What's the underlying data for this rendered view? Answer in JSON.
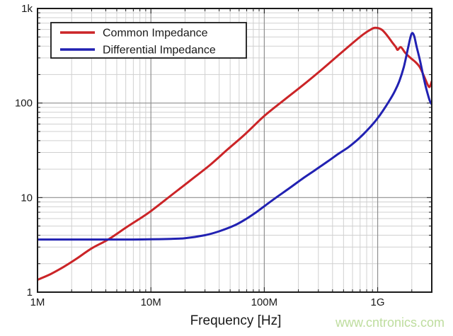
{
  "watermark": {
    "text": "www.cntronics.com",
    "color": "#bedd9e"
  },
  "colors": {
    "background": "#ffffff",
    "axis": "#1a1a1a",
    "grid_minor": "#d0d0d0",
    "grid_major": "#8f8f8f",
    "text": "#1a1a1a",
    "common_series": "#cb2427",
    "differential_series": "#2121b2",
    "legend_border": "#1a1a1a",
    "legend_background": "#ffffff"
  },
  "chart_data": {
    "type": "line",
    "title": "",
    "xlabel": "Frequency [Hz]",
    "ylabel": "",
    "x_scale": "log",
    "y_scale": "log",
    "xlim": [
      1000000.0,
      3000000000.0
    ],
    "ylim": [
      1,
      1000
    ],
    "grid": {
      "major": true,
      "minor": true
    },
    "legend_position": "top-left",
    "x_ticks": [
      {
        "value": 1000000.0,
        "label": "1M"
      },
      {
        "value": 10000000.0,
        "label": "10M"
      },
      {
        "value": 100000000.0,
        "label": "100M"
      },
      {
        "value": 1000000000.0,
        "label": "1G"
      }
    ],
    "y_ticks": [
      {
        "value": 1,
        "label": "1"
      },
      {
        "value": 10,
        "label": "10"
      },
      {
        "value": 100,
        "label": "100"
      },
      {
        "value": 1000,
        "label": "1k"
      }
    ],
    "series": [
      {
        "name": "Common Impedance",
        "color": "#cb2427",
        "points": [
          [
            1000000.0,
            1.35
          ],
          [
            1300000.0,
            1.55
          ],
          [
            1700000.0,
            1.85
          ],
          [
            2200000.0,
            2.25
          ],
          [
            3000000.0,
            2.9
          ],
          [
            4200000.0,
            3.6
          ],
          [
            6000000.0,
            4.8
          ],
          [
            8000000.0,
            6.0
          ],
          [
            10000000.0,
            7.2
          ],
          [
            15000000.0,
            10.5
          ],
          [
            22000000.0,
            15
          ],
          [
            33000000.0,
            22
          ],
          [
            47000000.0,
            32
          ],
          [
            68000000.0,
            47
          ],
          [
            100000000.0,
            73
          ],
          [
            150000000.0,
            108
          ],
          [
            220000000.0,
            155
          ],
          [
            320000000.0,
            225
          ],
          [
            450000000.0,
            320
          ],
          [
            600000000.0,
            430
          ],
          [
            750000000.0,
            535
          ],
          [
            870000000.0,
            600
          ],
          [
            950000000.0,
            625
          ],
          [
            1080000000.0,
            600
          ],
          [
            1200000000.0,
            525
          ],
          [
            1350000000.0,
            435
          ],
          [
            1450000000.0,
            390
          ],
          [
            1500000000.0,
            365
          ],
          [
            1600000000.0,
            390
          ],
          [
            1750000000.0,
            340
          ],
          [
            1950000000.0,
            300
          ],
          [
            2150000000.0,
            272
          ],
          [
            2350000000.0,
            240
          ],
          [
            2550000000.0,
            195
          ],
          [
            2750000000.0,
            158
          ],
          [
            2870000000.0,
            148
          ],
          [
            3000000000.0,
            170
          ]
        ]
      },
      {
        "name": "Differential Impedance",
        "color": "#2121b2",
        "points": [
          [
            1000000.0,
            3.6
          ],
          [
            2000000.0,
            3.6
          ],
          [
            4000000.0,
            3.6
          ],
          [
            7000000.0,
            3.6
          ],
          [
            10000000.0,
            3.62
          ],
          [
            15000000.0,
            3.66
          ],
          [
            20000000.0,
            3.72
          ],
          [
            30000000.0,
            4.0
          ],
          [
            40000000.0,
            4.4
          ],
          [
            55000000.0,
            5.1
          ],
          [
            70000000.0,
            6.0
          ],
          [
            85000000.0,
            7.0
          ],
          [
            100000000.0,
            8.1
          ],
          [
            130000000.0,
            10.2
          ],
          [
            170000000.0,
            12.8
          ],
          [
            220000000.0,
            16
          ],
          [
            280000000.0,
            19.5
          ],
          [
            360000000.0,
            24
          ],
          [
            450000000.0,
            29
          ],
          [
            550000000.0,
            34
          ],
          [
            650000000.0,
            40
          ],
          [
            750000000.0,
            47
          ],
          [
            850000000.0,
            55
          ],
          [
            950000000.0,
            64
          ],
          [
            1050000000.0,
            75
          ],
          [
            1150000000.0,
            88
          ],
          [
            1250000000.0,
            103
          ],
          [
            1400000000.0,
            130
          ],
          [
            1550000000.0,
            170
          ],
          [
            1700000000.0,
            240
          ],
          [
            1850000000.0,
            380
          ],
          [
            1950000000.0,
            500
          ],
          [
            2020000000.0,
            550
          ],
          [
            2100000000.0,
            510
          ],
          [
            2200000000.0,
            400
          ],
          [
            2350000000.0,
            290
          ],
          [
            2500000000.0,
            205
          ],
          [
            2650000000.0,
            150
          ],
          [
            2800000000.0,
            118
          ],
          [
            2900000000.0,
            104
          ],
          [
            3000000000.0,
            97
          ]
        ]
      }
    ]
  }
}
